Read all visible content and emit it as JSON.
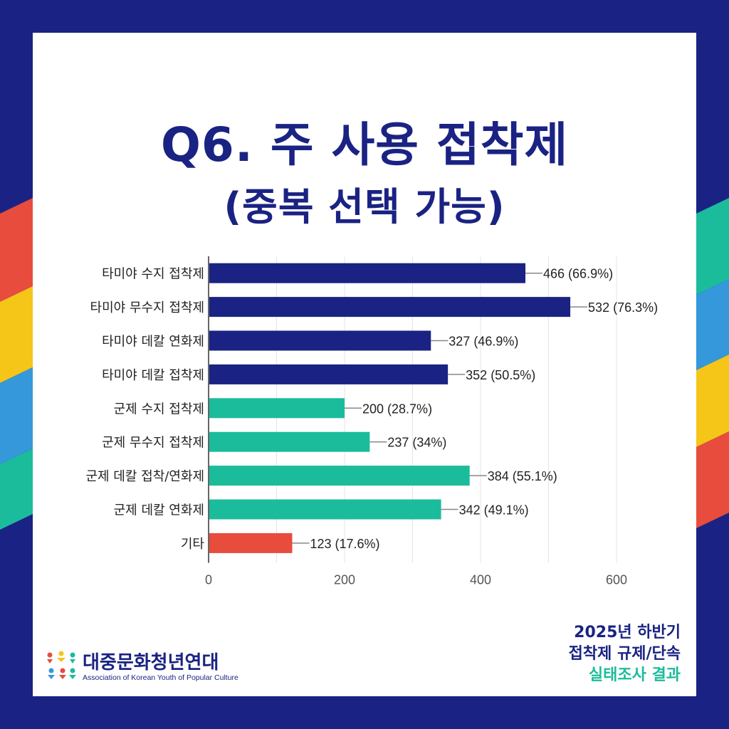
{
  "title": {
    "line1": "Q6. 주 사용 접착제",
    "line2": "(중복 선택 가능)"
  },
  "chart_data": {
    "type": "bar",
    "orientation": "horizontal",
    "categories": [
      "타미야 수지 접착제",
      "타미야 무수지 접착제",
      "타미야 데칼 연화제",
      "타미야 데칼 접착제",
      "군제 수지 접착제",
      "군제 무수지 접착제",
      "군제 데칼 접착/연화제",
      "군제 데칼 연화제",
      "기타"
    ],
    "values": [
      466,
      532,
      327,
      352,
      200,
      237,
      384,
      342,
      123
    ],
    "data_labels": [
      "466 (66.9%)",
      "532 (76.3%)",
      "327 (46.9%)",
      "352 (50.5%)",
      "200 (28.7%)",
      "237 (34%)",
      "384 (55.1%)",
      "342 (49.1%)",
      "123 (17.6%)"
    ],
    "bar_colors": [
      "#1a2383",
      "#1a2383",
      "#1a2383",
      "#1a2383",
      "#1bbc9b",
      "#1bbc9b",
      "#1bbc9b",
      "#1bbc9b",
      "#e74c3c"
    ],
    "xlim": [
      0,
      600
    ],
    "x_ticks": [
      0,
      200,
      400,
      600
    ],
    "grid": true,
    "legend": "none"
  },
  "footer": {
    "line1": "2025년 하반기",
    "line2": "접착제 규제/단속",
    "line3": "실태조사 결과"
  },
  "logo": {
    "name": "대중문화청년연대",
    "subtitle": "Association of Korean Youth of Popular Culture"
  },
  "colors": {
    "navy": "#1a2383",
    "teal": "#1bbc9b",
    "red": "#e74c3c",
    "yellow": "#f5c518",
    "blue": "#3498db"
  }
}
